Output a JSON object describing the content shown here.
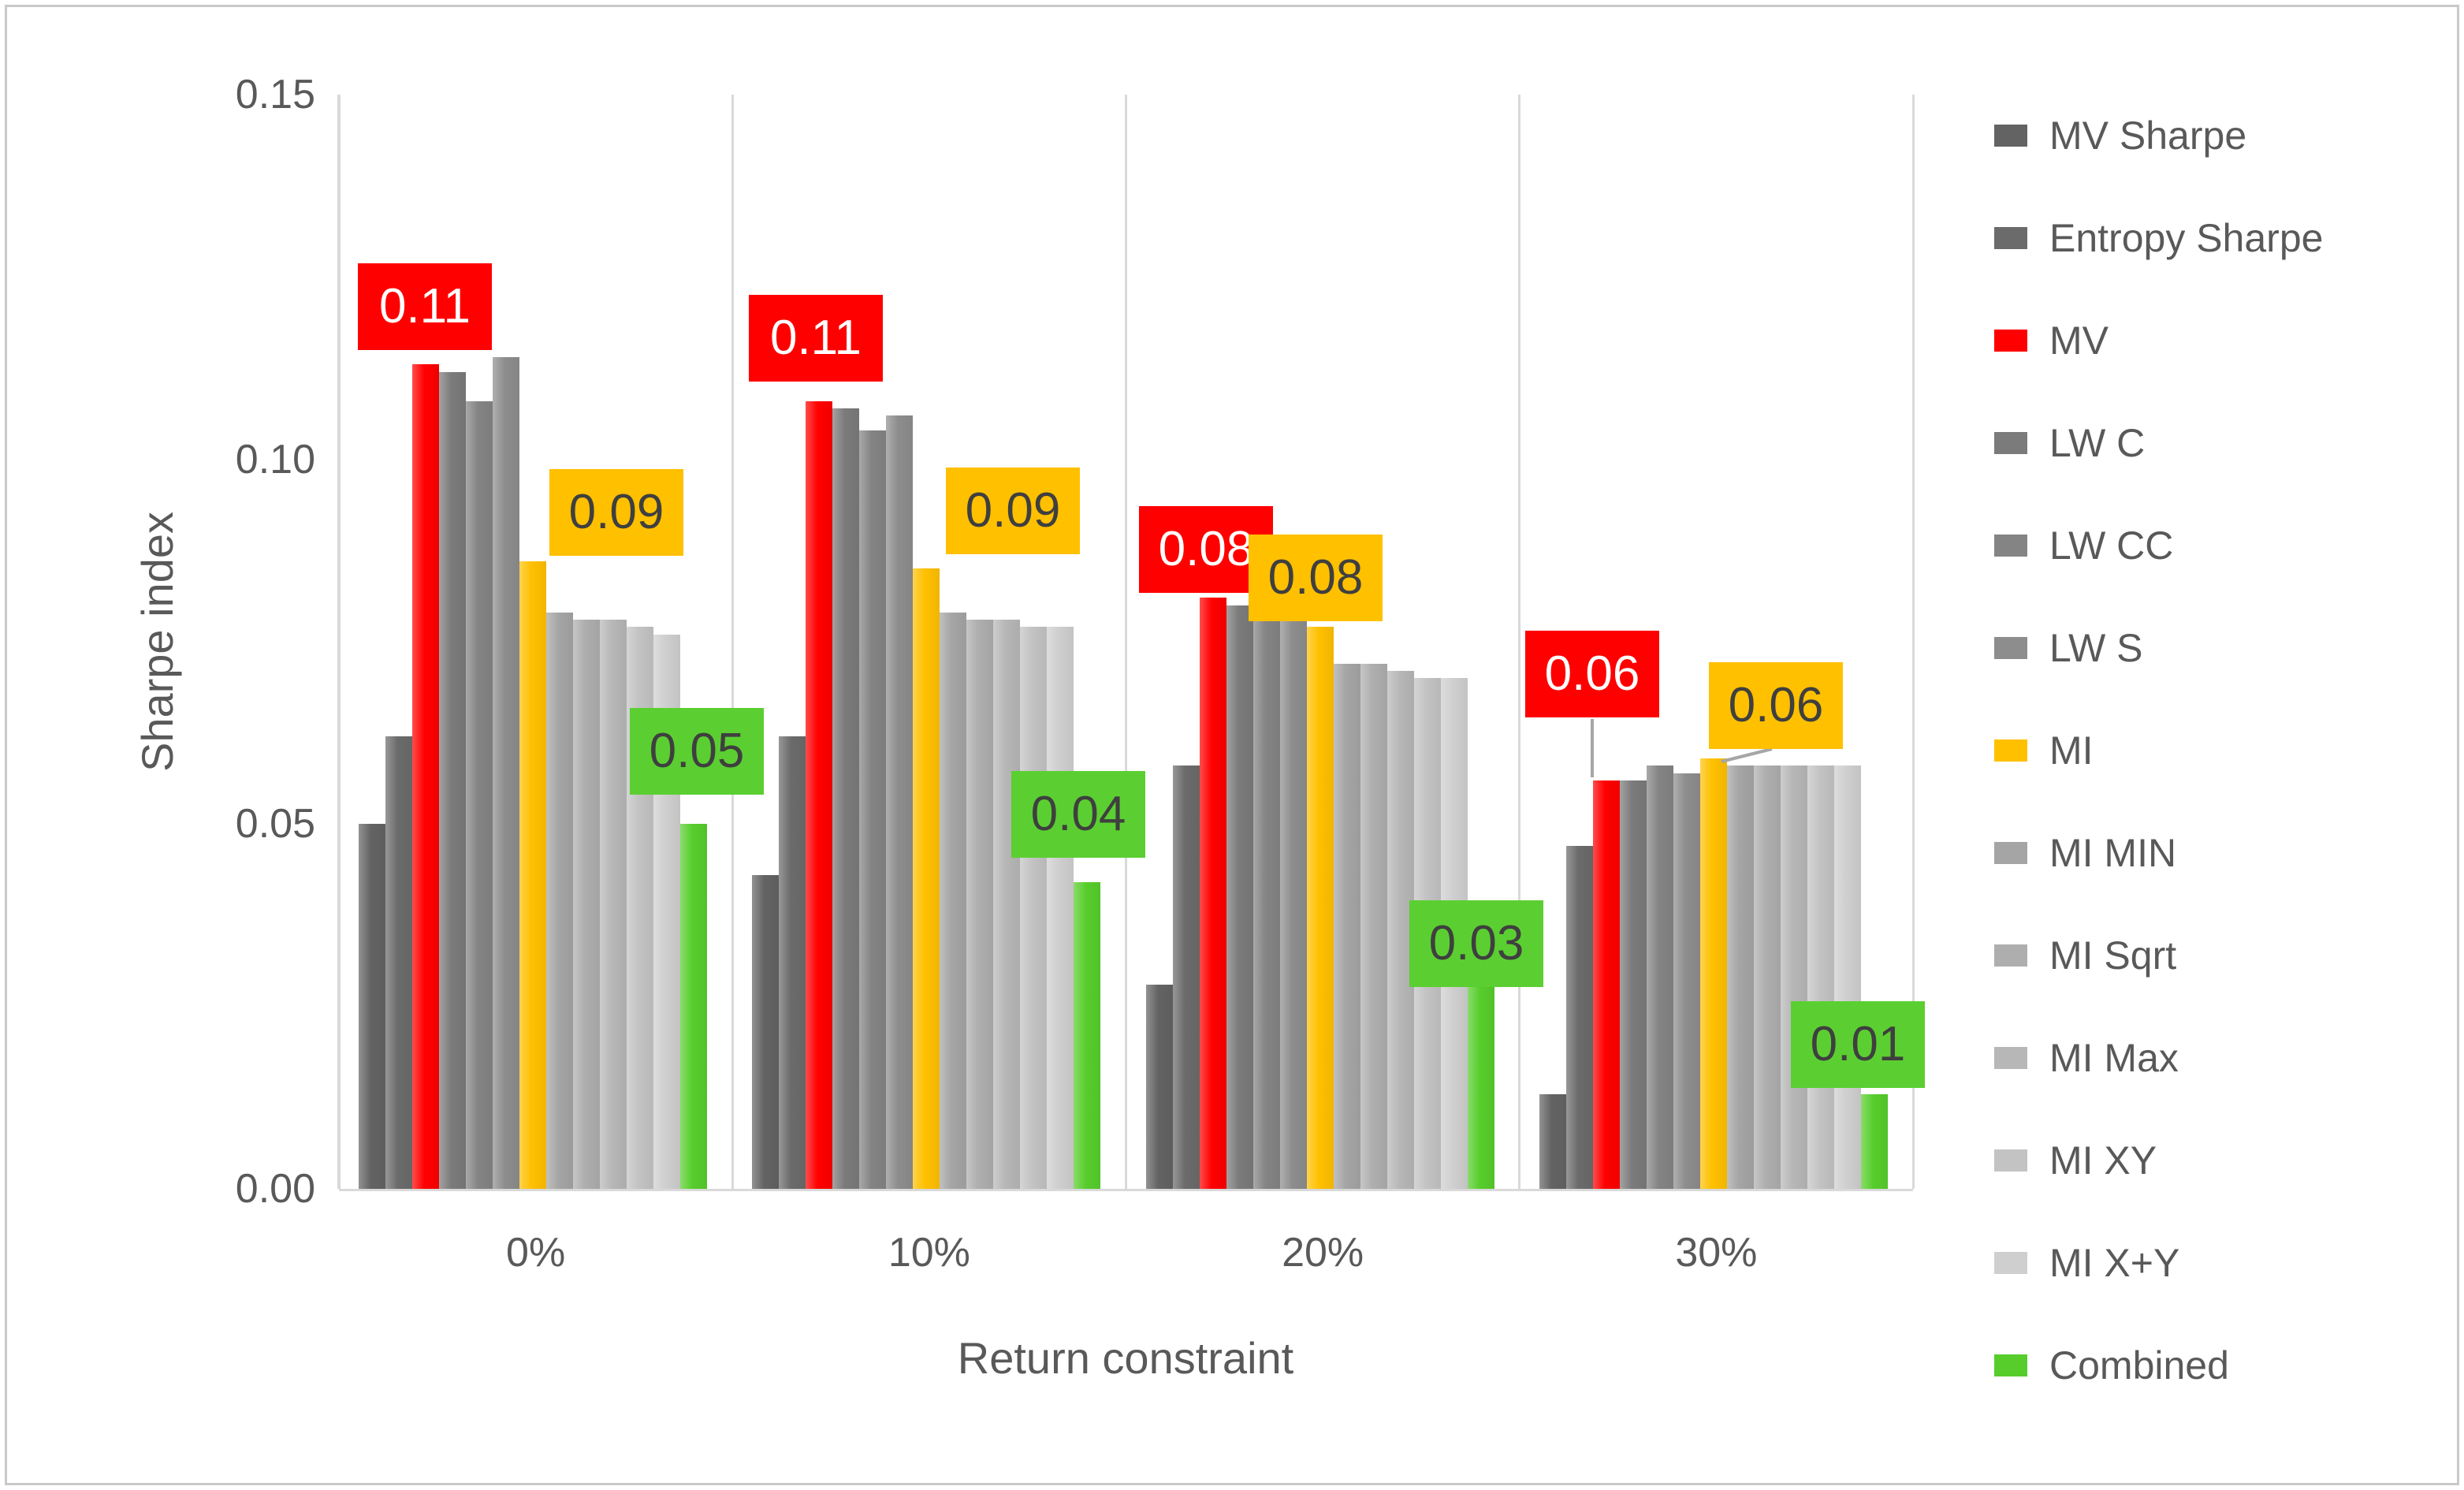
{
  "figure": {
    "border_color": "#c9c9c9",
    "background": "#ffffff",
    "text_color": "#595959",
    "gridline_color": "#d9d9d9"
  },
  "chart_data": {
    "type": "bar",
    "title": "",
    "xlabel": "Return constraint",
    "ylabel": "Sharpe index",
    "categories": [
      "0%",
      "10%",
      "20%",
      "30%"
    ],
    "y_ticks": [
      "0.15",
      "0.10",
      "0.05",
      "0.00"
    ],
    "ylim": [
      0.0,
      0.15
    ],
    "grid": "vertical-category-separators",
    "legend_position": "right",
    "series": [
      {
        "name": "MV Sharpe",
        "color": "#636363",
        "values": [
          0.05,
          0.043,
          0.028,
          0.013
        ]
      },
      {
        "name": "Entropy Sharpe",
        "color": "#6b6b6b",
        "values": [
          0.062,
          0.062,
          0.058,
          0.047
        ]
      },
      {
        "name": "MV",
        "color": "#ff0000",
        "values": [
          0.113,
          0.108,
          0.081,
          0.056
        ],
        "data_labels": [
          "0.11",
          "0.11",
          "0.08",
          "0.06"
        ],
        "label_bg": "#ff0000",
        "label_fg": "#ffffff"
      },
      {
        "name": "LW C",
        "color": "#7b7b7b",
        "values": [
          0.112,
          0.107,
          0.08,
          0.056
        ]
      },
      {
        "name": "LW CC",
        "color": "#848484",
        "values": [
          0.108,
          0.104,
          0.078,
          0.058
        ]
      },
      {
        "name": "LW S",
        "color": "#8d8d8d",
        "values": [
          0.114,
          0.106,
          0.078,
          0.057
        ]
      },
      {
        "name": "MI",
        "color": "#ffc000",
        "values": [
          0.086,
          0.085,
          0.077,
          0.059
        ],
        "data_labels": [
          "0.09",
          "0.09",
          "0.08",
          "0.06"
        ],
        "label_bg": "#ffc000",
        "label_fg": "#3f3f3f"
      },
      {
        "name": "MI MIN",
        "color": "#a5a5a5",
        "values": [
          0.079,
          0.079,
          0.072,
          0.058
        ]
      },
      {
        "name": "MI Sqrt",
        "color": "#aeaeae",
        "values": [
          0.078,
          0.078,
          0.072,
          0.058
        ]
      },
      {
        "name": "MI Max",
        "color": "#b7b7b7",
        "values": [
          0.078,
          0.078,
          0.071,
          0.058
        ]
      },
      {
        "name": "MI XY",
        "color": "#c3c3c3",
        "values": [
          0.077,
          0.077,
          0.07,
          0.058
        ]
      },
      {
        "name": "MI X+Y",
        "color": "#cfcfcf",
        "values": [
          0.076,
          0.077,
          0.07,
          0.058
        ]
      },
      {
        "name": "Combined",
        "color": "#57cd2c",
        "values": [
          0.05,
          0.042,
          0.028,
          0.013
        ],
        "data_labels": [
          "0.05",
          "0.04",
          "0.03",
          "0.01"
        ],
        "label_bg": "#5bcf31",
        "label_fg": "#3f3f3f"
      }
    ]
  }
}
